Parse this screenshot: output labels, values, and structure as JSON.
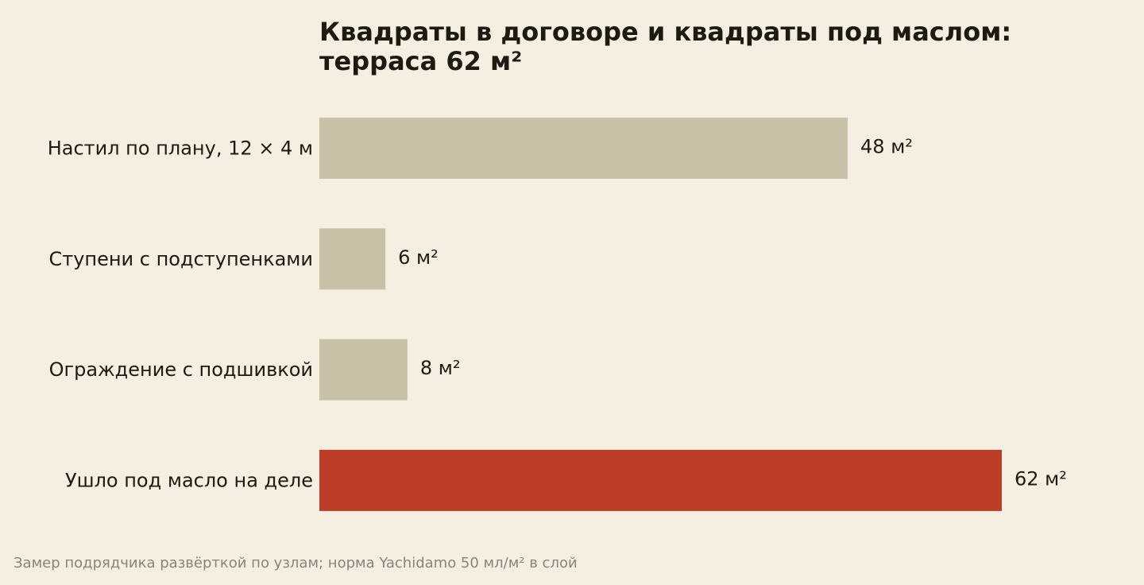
{
  "chart_data": {
    "type": "bar",
    "orientation": "horizontal",
    "title_lines": [
      "Квадраты в договоре и квадраты под маслом:",
      "терраса 62 м²"
    ],
    "categories": [
      "Настил по плану, 12 × 4 м",
      "Ступени с подступенками",
      "Ограждение с подшивкой",
      "Ушло под масло на деле"
    ],
    "values": [
      48,
      6,
      8,
      62
    ],
    "value_labels": [
      "48 м²",
      "6 м²",
      "8 м²",
      "62 м²"
    ],
    "xlim": [
      0,
      62
    ],
    "grid": false,
    "colors": {
      "base": "#c9c0a8",
      "highlight": "#bc3d28",
      "background": "#f5efe2"
    },
    "highlight_index": 3
  },
  "footnote": "Замер подрядчика развёрткой по узлам; норма Yachidamo 50 мл/м² в слой"
}
